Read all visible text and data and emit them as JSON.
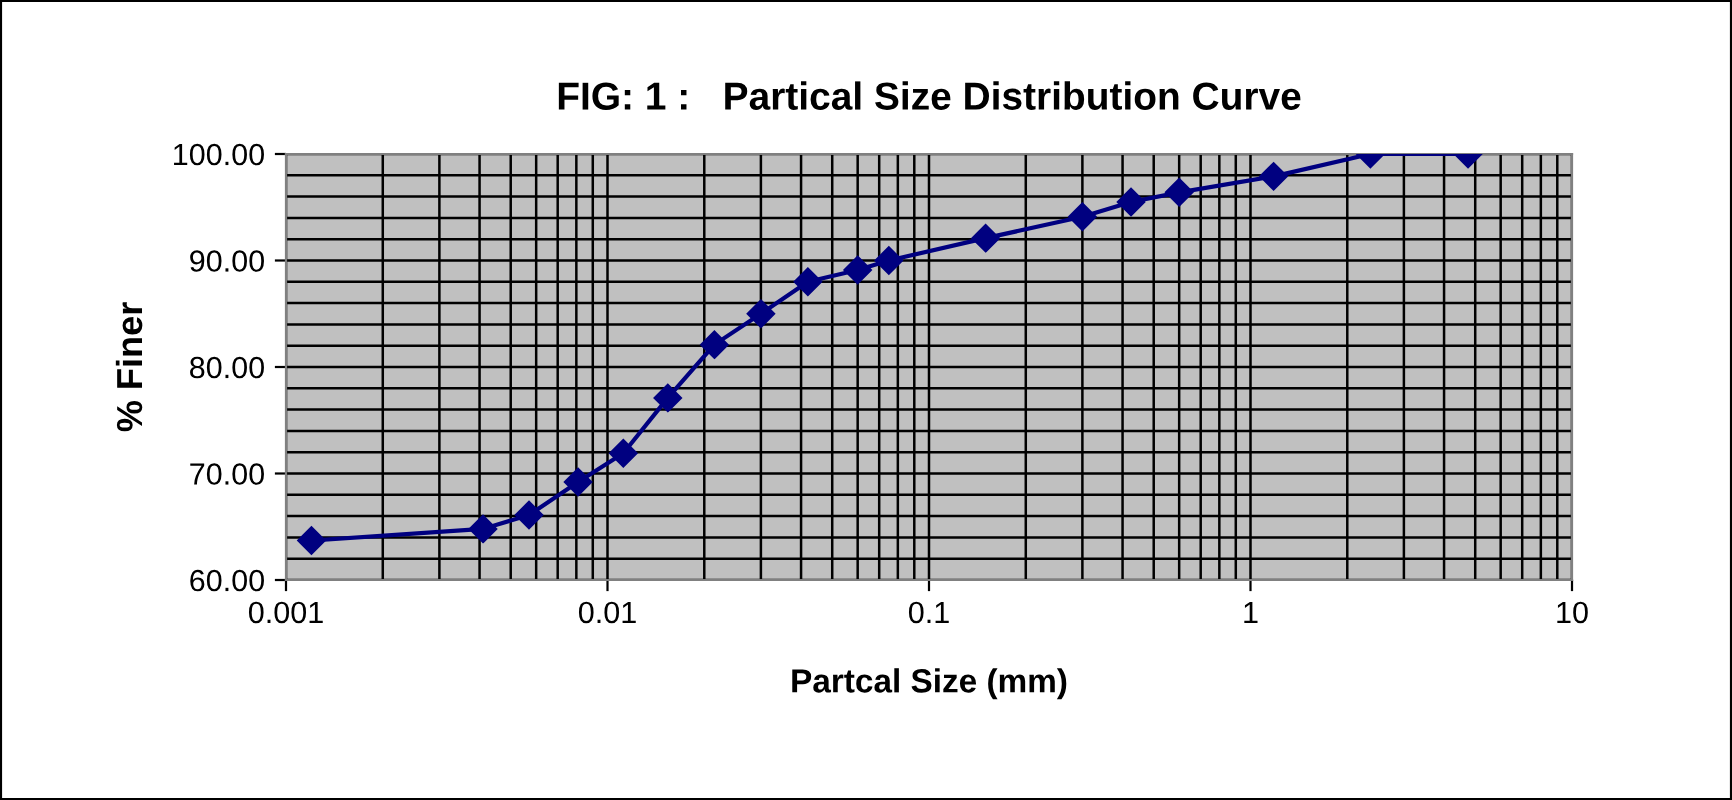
{
  "chart_data": {
    "type": "line",
    "title": "FIG: 1 :   Partical Size Distribution Curve",
    "xlabel": "Partcal Size (mm)",
    "ylabel": "% Finer",
    "log": "x",
    "grid": true,
    "marker": "diamond",
    "line_style": "solid",
    "legend": false,
    "xlim": [
      0.001,
      10
    ],
    "xticks": [
      0.001,
      0.01,
      0.1,
      1,
      10
    ],
    "ylim": [
      60,
      100
    ],
    "yticks": [
      {
        "value": 60,
        "label": "60.00"
      },
      {
        "value": 70,
        "label": "70.00"
      },
      {
        "value": 80,
        "label": "80.00"
      },
      {
        "value": 90,
        "label": "90.00"
      },
      {
        "value": 100,
        "label": "100.00"
      }
    ],
    "series": [
      {
        "color": "#000080",
        "x": [
          0.0012,
          0.0041,
          0.0057,
          0.0081,
          0.0112,
          0.0154,
          0.0215,
          0.03,
          0.042,
          0.06,
          0.075,
          0.15,
          0.3,
          0.425,
          0.6,
          1.18,
          2.36,
          4.75
        ],
        "values": [
          63.7,
          64.8,
          66.1,
          69.2,
          71.9,
          77.1,
          82.1,
          85.0,
          88.0,
          89.1,
          90.0,
          92.1,
          94.1,
          95.5,
          96.4,
          97.9,
          100,
          100
        ]
      }
    ]
  }
}
